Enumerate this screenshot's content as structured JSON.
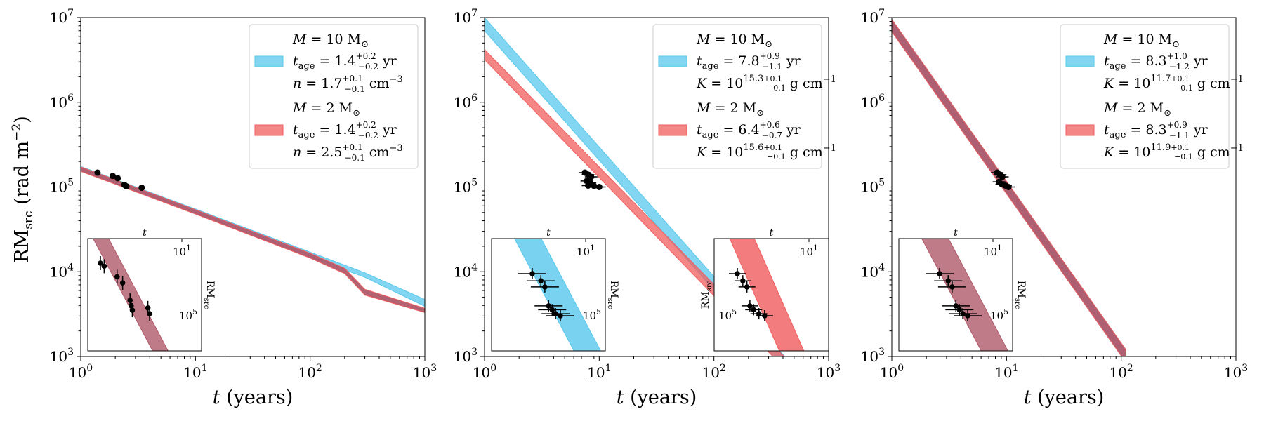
{
  "chart_data": [
    {
      "type": "line",
      "panel": "left",
      "xscale": "log",
      "yscale": "log",
      "xlim": [
        1,
        1000
      ],
      "ylim": [
        1000,
        10000000
      ],
      "xlabel": "t (years)",
      "ylabel": "RM_src (rad m^-2)",
      "xticks": [
        "10^0",
        "10^1",
        "10^2",
        "10^3"
      ],
      "yticks": [
        "10^3",
        "10^4",
        "10^5",
        "10^6",
        "10^7"
      ],
      "legend_position": "top-right",
      "series": [
        {
          "name": "M = 10 M_sun",
          "color": "#58c8ec",
          "legend": {
            "l1": "M = 10 M⊙",
            "l2": "t_age = 1.4 (+0.2 −0.2) yr",
            "l3": "n = 1.7 (+0.1 −0.1) cm^−3"
          },
          "x": [
            1,
            10,
            100,
            300,
            1000
          ],
          "y_lo": [
            155000,
            48000,
            15000,
            8600,
            3900
          ],
          "y_hi": [
            175000,
            55000,
            17000,
            9700,
            4700
          ]
        },
        {
          "name": "M = 2 M_sun",
          "color": "#f05d5e",
          "legend": {
            "l1": "M = 2 M⊙",
            "l2": "t_age = 1.4 (+0.2 −0.2) yr",
            "l3": "n = 2.5 (+0.1 −0.1) cm^−3"
          },
          "x": [
            1,
            10,
            100,
            200,
            300,
            1000
          ],
          "y_lo": [
            153000,
            48000,
            14500,
            9500,
            5300,
            3300
          ],
          "y_hi": [
            173000,
            54000,
            16500,
            11000,
            6200,
            3700
          ]
        }
      ],
      "points": [
        {
          "x": 1.4,
          "y": 148000
        },
        {
          "x": 1.9,
          "y": 135000
        },
        {
          "x": 2.1,
          "y": 127000
        },
        {
          "x": 2.4,
          "y": 106000
        },
        {
          "x": 2.5,
          "y": 102000
        },
        {
          "x": 3.4,
          "y": 98000
        }
      ],
      "inset": {
        "xlabel": "t",
        "ylabel": "RM_src",
        "xtick": "10^1",
        "ytick": "10^5",
        "band_color": "#b05a6a",
        "points": [
          {
            "x": 1.5,
            "y": 150000,
            "yerr": 12000
          },
          {
            "x": 1.6,
            "y": 146000,
            "yerr": 12000
          },
          {
            "x": 2.0,
            "y": 133000,
            "yerr": 9000
          },
          {
            "x": 2.2,
            "y": 126000,
            "yerr": 8000
          },
          {
            "x": 2.5,
            "y": 108000,
            "yerr": 8000
          },
          {
            "x": 2.55,
            "y": 103000,
            "yerr": 8000
          },
          {
            "x": 2.6,
            "y": 99000,
            "yerr": 8000
          },
          {
            "x": 3.4,
            "y": 101000,
            "yerr": 8000
          },
          {
            "x": 3.5,
            "y": 96000,
            "yerr": 8000
          }
        ]
      }
    },
    {
      "type": "line",
      "panel": "middle",
      "xscale": "log",
      "yscale": "log",
      "xlim": [
        1,
        1000
      ],
      "ylim": [
        1000,
        10000000
      ],
      "xlabel": "t (years)",
      "ylabel": "",
      "xticks": [
        "10^0",
        "10^1",
        "10^2",
        "10^3"
      ],
      "yticks": [
        "10^3",
        "10^4",
        "10^5",
        "10^6",
        "10^7"
      ],
      "legend_position": "top-right",
      "series": [
        {
          "name": "M = 10 M_sun",
          "color": "#58c8ec",
          "legend": {
            "l1": "M = 10 M⊙",
            "l2": "t_age = 7.8 (+0.9 −1.1) yr",
            "l3": "K = 10^(15.3 +0.1 −0.1) g cm^−1"
          },
          "x": [
            1,
            1000
          ],
          "y_lo": [
            7000000,
            180
          ],
          "y_hi": [
            10000000,
            260
          ]
        },
        {
          "name": "M = 2 M_sun",
          "color": "#f05d5e",
          "legend": {
            "l1": "M = 2 M⊙",
            "l2": "t_age = 6.4 (+0.6 −0.7) yr",
            "l3": "K = 10^(15.6 +0.1 −0.1) g cm^−1"
          },
          "x": [
            1,
            1000
          ],
          "y_lo": [
            3200000,
            210
          ],
          "y_hi": [
            4200000,
            290
          ]
        }
      ],
      "points": [
        {
          "x": 7.5,
          "y": 148000
        },
        {
          "x": 8.0,
          "y": 140000
        },
        {
          "x": 8.5,
          "y": 132000
        },
        {
          "x": 7.8,
          "y": 118000
        },
        {
          "x": 8.3,
          "y": 112000
        },
        {
          "x": 8.0,
          "y": 104000
        },
        {
          "x": 9.0,
          "y": 103000
        },
        {
          "x": 10.0,
          "y": 100000
        }
      ],
      "insets": [
        {
          "xlabel": "t",
          "ylabel": "RM_src",
          "xtick": "10^1",
          "ytick": "10^5",
          "band_color": "#58c8ec",
          "points": [
            {
              "x": 6.4,
              "y": 150000,
              "xerr": 1.0
            },
            {
              "x": 7.2,
              "y": 140000,
              "xerr": 1.0
            },
            {
              "x": 7.6,
              "y": 132000,
              "xerr": 1.0
            },
            {
              "x": 8.0,
              "y": 110000,
              "xerr": 1.1
            },
            {
              "x": 8.4,
              "y": 106000,
              "xerr": 1.1
            },
            {
              "x": 8.8,
              "y": 102000,
              "xerr": 1.1
            },
            {
              "x": 9.4,
              "y": 100000,
              "xerr": 1.1
            }
          ]
        },
        {
          "xlabel": "t",
          "ylabel": "RM_src",
          "xtick": "10^1",
          "ytick": "10^5",
          "band_color": "#f05d5e",
          "points": [
            {
              "x": 6.4,
              "y": 150000,
              "xerr": 0.7
            },
            {
              "x": 6.9,
              "y": 140000,
              "xerr": 0.7
            },
            {
              "x": 7.3,
              "y": 132000,
              "xerr": 0.7
            },
            {
              "x": 7.6,
              "y": 110000,
              "xerr": 0.7
            },
            {
              "x": 8.0,
              "y": 106000,
              "xerr": 0.7
            },
            {
              "x": 8.6,
              "y": 102000,
              "xerr": 0.7
            },
            {
              "x": 9.3,
              "y": 100000,
              "xerr": 0.7
            }
          ]
        }
      ]
    },
    {
      "type": "line",
      "panel": "right",
      "xscale": "log",
      "yscale": "log",
      "xlim": [
        1,
        1000
      ],
      "ylim": [
        1000,
        10000000
      ],
      "xlabel": "t (years)",
      "ylabel": "",
      "xticks": [
        "10^0",
        "10^1",
        "10^2",
        "10^3"
      ],
      "yticks": [
        "10^3",
        "10^4",
        "10^5",
        "10^6",
        "10^7"
      ],
      "legend_position": "top-right",
      "series": [
        {
          "name": "M = 10 M_sun",
          "color": "#58c8ec",
          "legend": {
            "l1": "M = 10 M⊙",
            "l2": "t_age = 8.3 (+1.0 −1.2) yr",
            "l3": "K = 10^(11.7 +0.1 −0.1) g cm^−1"
          },
          "x": [
            1,
            110
          ],
          "y_lo": [
            6800000,
            850
          ],
          "y_hi": [
            9500000,
            1200
          ]
        },
        {
          "name": "M = 2 M_sun",
          "color": "#f05d5e",
          "legend": {
            "l1": "M = 2 M⊙",
            "l2": "t_age = 8.3 (+0.9 −1.1) yr",
            "l3": "K = 10^(11.9 +0.1 −0.1) g cm^−1"
          },
          "x": [
            1,
            110
          ],
          "y_lo": [
            6800000,
            850
          ],
          "y_hi": [
            9500000,
            1200
          ]
        }
      ],
      "points": [
        {
          "x": 8.3,
          "y": 148000
        },
        {
          "x": 8.8,
          "y": 140000
        },
        {
          "x": 9.2,
          "y": 132000
        },
        {
          "x": 8.6,
          "y": 115000
        },
        {
          "x": 9.1,
          "y": 108000
        },
        {
          "x": 9.8,
          "y": 104000
        },
        {
          "x": 10.4,
          "y": 100000
        }
      ],
      "inset": {
        "xlabel": "t",
        "ylabel": "RM_src",
        "xtick": "10^1",
        "ytick": "10^5",
        "band_color": "#b05a6a",
        "points": [
          {
            "x": 6.4,
            "y": 150000,
            "xerr": 1.0
          },
          {
            "x": 7.2,
            "y": 140000,
            "xerr": 1.0
          },
          {
            "x": 7.6,
            "y": 132000,
            "xerr": 1.0
          },
          {
            "x": 8.0,
            "y": 110000,
            "xerr": 1.1
          },
          {
            "x": 8.4,
            "y": 106000,
            "xerr": 1.1
          },
          {
            "x": 8.8,
            "y": 102000,
            "xerr": 1.1
          },
          {
            "x": 9.4,
            "y": 100000,
            "xerr": 1.1
          }
        ]
      }
    }
  ],
  "common": {
    "xlabel_italic": "t",
    "xlabel_rest": " (years)",
    "ylabel_main": "RM",
    "ylabel_sub": "src",
    "ylabel_rest": " (rad m",
    "ylabel_sup": "−2",
    "ylabel_close": ")",
    "tick_base": "10",
    "yr": "yr",
    "cm3": "cm",
    "cm3_sup": "−3",
    "gcm": "g cm",
    "gcm_sup": "−1",
    "tage_sub": "age",
    "sun": "⊙",
    "overlap_color": "#b05a6a"
  },
  "legends": [
    {
      "e1": {
        "m": "10",
        "tage": "1.4",
        "tage_up": "+0.2",
        "tage_dn": "−0.2",
        "p": "n",
        "pval": "1.7",
        "p_up": "+0.1",
        "p_dn": "−0.1",
        "kind": "n"
      },
      "e2": {
        "m": "2",
        "tage": "1.4",
        "tage_up": "+0.2",
        "tage_dn": "−0.2",
        "p": "n",
        "pval": "2.5",
        "p_up": "+0.1",
        "p_dn": "−0.1",
        "kind": "n"
      }
    },
    {
      "e1": {
        "m": "10",
        "tage": "7.8",
        "tage_up": "+0.9",
        "tage_dn": "−1.1",
        "p": "K",
        "pval": "15.3",
        "p_up": "+0.1",
        "p_dn": "−0.1",
        "kind": "K"
      },
      "e2": {
        "m": "2",
        "tage": "6.4",
        "tage_up": "+0.6",
        "tage_dn": "−0.7",
        "p": "K",
        "pval": "15.6",
        "p_up": "+0.1",
        "p_dn": "−0.1",
        "kind": "K"
      }
    },
    {
      "e1": {
        "m": "10",
        "tage": "8.3",
        "tage_up": "+1.0",
        "tage_dn": "−1.2",
        "p": "K",
        "pval": "11.7",
        "p_up": "+0.1",
        "p_dn": "−0.1",
        "kind": "K"
      },
      "e2": {
        "m": "2",
        "tage": "8.3",
        "tage_up": "+0.9",
        "tage_dn": "−1.1",
        "p": "K",
        "pval": "11.9",
        "p_up": "+0.1",
        "p_dn": "−0.1",
        "kind": "K"
      }
    }
  ]
}
